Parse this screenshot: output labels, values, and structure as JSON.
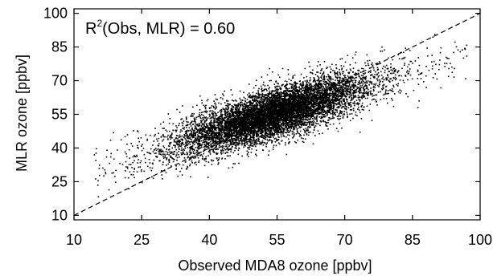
{
  "chart_data": {
    "type": "scatter",
    "title": "",
    "xlabel": "Observed MDA8 ozone [ppbv]",
    "ylabel": "MLR ozone [ppbv]",
    "xlim": [
      10,
      100
    ],
    "ylim": [
      8,
      102
    ],
    "xticks": [
      "10",
      "25",
      "40",
      "55",
      "70",
      "85",
      "100"
    ],
    "yticks": [
      "10",
      "25",
      "40",
      "55",
      "70",
      "85",
      "100"
    ],
    "reference_line": {
      "style": "dashed",
      "description": "1:1 line",
      "from": [
        10,
        10
      ],
      "to": [
        100,
        100
      ]
    },
    "annotation": {
      "r2_base": "R",
      "r2_sup": "2",
      "r2_rest": "(Obs, MLR) = 0.60"
    },
    "point_color": "#000000",
    "point_cloud": {
      "x_center": 54,
      "x_spread": 10.5,
      "x_range_visible": [
        14,
        97
      ],
      "slope": 0.62,
      "intercept": 22,
      "scatter_sd": 5.5
    },
    "grid": false,
    "legend": "none"
  }
}
